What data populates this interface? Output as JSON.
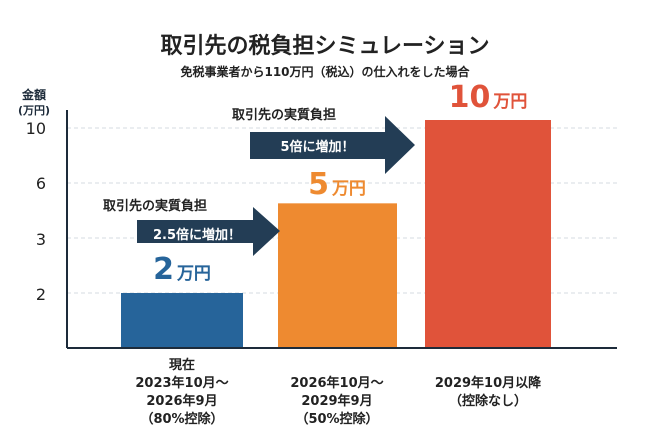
{
  "chart_data": {
    "type": "bar",
    "title": "取引先の税負担シミュレーション",
    "subtitle": "免税事業者から110万円（税込）の仕入れをした場合",
    "ylabel": "金額",
    "yunit": "(万円)",
    "yticks": [
      "2",
      "3",
      "6",
      "10"
    ],
    "ytick_values": [
      2,
      3,
      6,
      10
    ],
    "grid": true,
    "categories": [
      [
        "現在",
        "2023年10月～",
        "2026年9月",
        "（80%控除）"
      ],
      [
        "2026年10月～",
        "2029年9月",
        "（50%控除）"
      ],
      [
        "2029年10月以降",
        "（控除なし）"
      ]
    ],
    "values": [
      2,
      5,
      10
    ],
    "data_labels": [
      {
        "number": "2",
        "unit": "万円"
      },
      {
        "number": "5",
        "unit": "万円"
      },
      {
        "number": "10",
        "unit": "万円"
      }
    ],
    "colors": [
      "#26649a",
      "#ee8a30",
      "#e0533a"
    ],
    "annotations": [
      {
        "title": "取引先の実質負担",
        "text": "2.5倍に増加！"
      },
      {
        "title": "取引先の実質負担",
        "text": "5倍に増加！"
      }
    ],
    "arrow_color": "#233d55"
  }
}
